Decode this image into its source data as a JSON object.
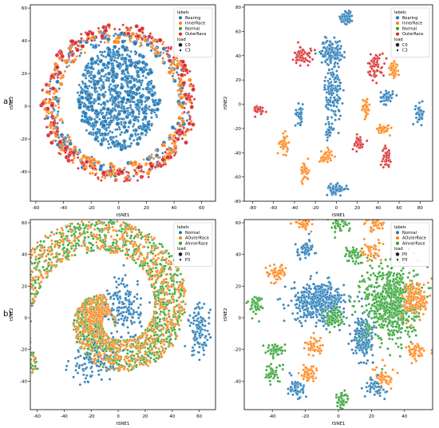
{
  "row_labels": [
    "a)",
    "b)"
  ],
  "colors": {
    "blue": "#1f77b4",
    "orange": "#ff7f0e",
    "green": "#2ca02c",
    "red": "#d62728"
  },
  "chart_data": [
    {
      "type": "scatter",
      "panel": "top-left",
      "xlabel": "tSNE1",
      "ylabel": "tSNE2",
      "xlim": [
        -64,
        70
      ],
      "ylim": [
        -58,
        62
      ],
      "xticks": [
        -60,
        -40,
        -20,
        0,
        20,
        40,
        60
      ],
      "yticks": [
        -40,
        -20,
        0,
        20,
        40,
        60
      ],
      "legend": {
        "placement": "top-right",
        "title": "labels",
        "entries": [
          {
            "label": "Bearing",
            "color": "#1f77b4"
          },
          {
            "label": "InnerRace",
            "color": "#ff7f0e"
          },
          {
            "label": "Normal",
            "color": "#2ca02c"
          },
          {
            "label": "OuterRace",
            "color": "#d62728"
          }
        ],
        "size_title": "load",
        "size_entries": [
          "C0",
          "C3"
        ]
      },
      "clusters": [
        {
          "label": "Normal",
          "shape": "disc",
          "cx": 0,
          "cy": 5,
          "r": 30,
          "n": 700
        },
        {
          "label": "Bearing",
          "shape": "ring",
          "cx": 0,
          "cy": 2,
          "r": 46,
          "w": 9,
          "n": 220
        },
        {
          "label": "InnerRace",
          "shape": "ring",
          "cx": 0,
          "cy": 2,
          "r": 47,
          "w": 10,
          "n": 300
        },
        {
          "label": "OuterRace",
          "shape": "ring",
          "cx": 0,
          "cy": 2,
          "r": 49,
          "w": 8,
          "n": 260
        }
      ]
    },
    {
      "type": "scatter",
      "panel": "top-right",
      "xlabel": "tSNE1",
      "ylabel": "tSNE2",
      "xlim": [
        -88,
        92
      ],
      "ylim": [
        -80,
        82
      ],
      "xticks": [
        -80,
        -60,
        -40,
        -20,
        0,
        20,
        40,
        60,
        80
      ],
      "yticks": [
        -80,
        -60,
        -40,
        -20,
        0,
        20,
        40,
        60,
        80
      ],
      "legend": {
        "placement": "top-right",
        "title": "labels",
        "entries": [
          {
            "label": "Bearing",
            "color": "#1f77b4"
          },
          {
            "label": "InnerRace",
            "color": "#ff7f0e"
          },
          {
            "label": "Normal",
            "color": "#2ca02c"
          },
          {
            "label": "OuterRace",
            "color": "#d62728"
          }
        ],
        "size_title": "load",
        "size_entries": [
          "C0",
          "C3"
        ]
      },
      "clusters": [
        {
          "label": "Bearing",
          "shape": "blob",
          "cx": 10,
          "cy": 72,
          "sx": 3,
          "sy": 3,
          "n": 60
        },
        {
          "label": "Bearing",
          "shape": "blob",
          "cx": -35,
          "cy": -8,
          "sx": 2,
          "sy": 4,
          "n": 40
        },
        {
          "label": "Bearing",
          "shape": "blob",
          "cx": 48,
          "cy": 6,
          "sx": 3,
          "sy": 3,
          "n": 40
        },
        {
          "label": "Bearing",
          "shape": "blob",
          "cx": 80,
          "cy": -8,
          "sx": 2,
          "sy": 4,
          "n": 40
        },
        {
          "label": "Bearing",
          "shape": "blob",
          "cx": 0,
          "cy": -70,
          "sx": 5,
          "sy": 2,
          "n": 60
        },
        {
          "label": "InnerRace",
          "shape": "blob",
          "cx": 55,
          "cy": 28,
          "sx": 2,
          "sy": 3,
          "n": 40
        },
        {
          "label": "InnerRace",
          "shape": "blob",
          "cx": 28,
          "cy": -3,
          "sx": 2,
          "sy": 4,
          "n": 40
        },
        {
          "label": "InnerRace",
          "shape": "blob",
          "cx": 45,
          "cy": -20,
          "sx": 3,
          "sy": 2,
          "n": 40
        },
        {
          "label": "InnerRace",
          "shape": "blob",
          "cx": -50,
          "cy": -33,
          "sx": 2,
          "sy": 4,
          "n": 45
        },
        {
          "label": "InnerRace",
          "shape": "blob",
          "cx": -10,
          "cy": -43,
          "sx": 3,
          "sy": 3,
          "n": 45
        },
        {
          "label": "InnerRace",
          "shape": "blob",
          "cx": -30,
          "cy": -55,
          "sx": 2,
          "sy": 4,
          "n": 45
        },
        {
          "label": "Normal",
          "shape": "blob",
          "cx": -5,
          "cy": 43,
          "sx": 5,
          "sy": 5,
          "n": 150
        },
        {
          "label": "Normal",
          "shape": "blob",
          "cx": -3,
          "cy": 8,
          "sx": 4,
          "sy": 12,
          "n": 140
        },
        {
          "label": "Normal",
          "shape": "blob",
          "cx": -7,
          "cy": -22,
          "sx": 1.5,
          "sy": 3,
          "n": 30
        },
        {
          "label": "OuterRace",
          "shape": "blob",
          "cx": -32,
          "cy": 40,
          "sx": 4,
          "sy": 4,
          "n": 60
        },
        {
          "label": "OuterRace",
          "shape": "blob",
          "cx": 38,
          "cy": 32,
          "sx": 4,
          "sy": 5,
          "n": 60
        },
        {
          "label": "OuterRace",
          "shape": "blob",
          "cx": -75,
          "cy": -5,
          "sx": 4,
          "sy": 2,
          "n": 35
        },
        {
          "label": "OuterRace",
          "shape": "blob",
          "cx": 21,
          "cy": -32,
          "sx": 3,
          "sy": 3,
          "n": 40
        },
        {
          "label": "OuterRace",
          "shape": "blob",
          "cx": 48,
          "cy": -43,
          "sx": 2,
          "sy": 4,
          "n": 40
        }
      ]
    },
    {
      "type": "scatter",
      "panel": "bottom-left",
      "xlabel": "tSNE1",
      "ylabel": "tSNE2",
      "xlim": [
        -65,
        72
      ],
      "ylim": [
        -58,
        62
      ],
      "xticks": [
        -60,
        -40,
        -20,
        0,
        20,
        40,
        60
      ],
      "yticks": [
        -40,
        -20,
        0,
        20,
        40,
        60
      ],
      "legend": {
        "placement": "top-right",
        "title": "labels",
        "entries": [
          {
            "label": "Normal",
            "color": "#1f77b4"
          },
          {
            "label": "AOuterRace",
            "color": "#ff7f0e"
          },
          {
            "label": "AInnerRace",
            "color": "#2ca02c"
          }
        ],
        "size_title": "load",
        "size_entries": [
          "P0",
          "P3"
        ]
      },
      "clusters": [
        {
          "label": "AInnerRace",
          "shape": "spiral",
          "n": 1700
        },
        {
          "label": "AOuterRace",
          "shape": "spiral",
          "n": 1100
        },
        {
          "label": "Normal",
          "shape": "blob",
          "cx": 5,
          "cy": 6,
          "sx": 6,
          "sy": 10,
          "n": 160
        },
        {
          "label": "Normal",
          "shape": "blob",
          "cx": 60,
          "cy": -8,
          "sx": 4,
          "sy": 8,
          "n": 110
        },
        {
          "label": "Normal",
          "shape": "blob",
          "cx": -20,
          "cy": -30,
          "sx": 8,
          "sy": 6,
          "n": 80
        }
      ]
    },
    {
      "type": "scatter",
      "panel": "bottom-right",
      "xlabel": "tSNE1",
      "ylabel": "tSNE2",
      "xlim": [
        -57,
        57
      ],
      "ylim": [
        -58,
        62
      ],
      "xticks": [
        -40,
        -20,
        0,
        20,
        40
      ],
      "yticks": [
        -40,
        -20,
        0,
        20,
        40,
        60
      ],
      "legend": {
        "placement": "top-right",
        "title": "labels",
        "entries": [
          {
            "label": "Normal",
            "color": "#1f77b4"
          },
          {
            "label": "AOuterRace",
            "color": "#ff7f0e"
          },
          {
            "label": "AInnerRace",
            "color": "#2ca02c"
          }
        ],
        "size_title": "load",
        "size_entries": [
          "P0",
          "P3"
        ]
      },
      "clusters": [
        {
          "label": "Normal",
          "shape": "blob",
          "cx": -12,
          "cy": 10,
          "sx": 8,
          "sy": 6,
          "n": 450
        },
        {
          "label": "Normal",
          "shape": "blob",
          "cx": 15,
          "cy": -12,
          "sx": 3,
          "sy": 6,
          "n": 200
        },
        {
          "label": "Normal",
          "shape": "blob",
          "cx": -20,
          "cy": 43,
          "sx": 3,
          "sy": 3,
          "n": 60
        },
        {
          "label": "AInnerRace",
          "shape": "blob",
          "cx": 32,
          "cy": 10,
          "sx": 8,
          "sy": 12,
          "n": 700
        },
        {
          "label": "AInnerRace",
          "shape": "blob",
          "cx": -3,
          "cy": 0,
          "sx": 3,
          "sy": 3,
          "n": 80
        },
        {
          "label": "AInnerRace",
          "shape": "blob",
          "cx": 0,
          "cy": 60,
          "sx": 3,
          "sy": 3,
          "n": 50
        },
        {
          "label": "AInnerRace",
          "shape": "blob",
          "cx": 9,
          "cy": 40,
          "sx": 3,
          "sy": 3,
          "n": 50
        },
        {
          "label": "AInnerRace",
          "shape": "blob",
          "cx": -50,
          "cy": 8,
          "sx": 2,
          "sy": 3,
          "n": 45
        },
        {
          "label": "AInnerRace",
          "shape": "blob",
          "cx": -38,
          "cy": -20,
          "sx": 3,
          "sy": 2,
          "n": 45
        },
        {
          "label": "AInnerRace",
          "shape": "blob",
          "cx": -40,
          "cy": -35,
          "sx": 3,
          "sy": 3,
          "n": 45
        },
        {
          "label": "AInnerRace",
          "shape": "blob",
          "cx": 2,
          "cy": -52,
          "sx": 2,
          "sy": 3,
          "n": 45
        },
        {
          "label": "AOuterRace",
          "shape": "blob",
          "cx": -20,
          "cy": 60,
          "sx": 3,
          "sy": 3,
          "n": 50
        },
        {
          "label": "AOuterRace",
          "shape": "blob",
          "cx": 22,
          "cy": 60,
          "sx": 3,
          "sy": 3,
          "n": 50
        },
        {
          "label": "AOuterRace",
          "shape": "blob",
          "cx": -38,
          "cy": 28,
          "sx": 3,
          "sy": 3,
          "n": 55
        },
        {
          "label": "AOuterRace",
          "shape": "blob",
          "cx": 20,
          "cy": 42,
          "sx": 3,
          "sy": 3,
          "n": 45
        },
        {
          "label": "AOuterRace",
          "shape": "blob",
          "cx": 47,
          "cy": 12,
          "sx": 4,
          "sy": 6,
          "n": 140
        },
        {
          "label": "AOuterRace",
          "shape": "blob",
          "cx": -18,
          "cy": -35,
          "sx": 3,
          "sy": 3,
          "n": 50
        },
        {
          "label": "AOuterRace",
          "shape": "blob",
          "cx": -15,
          "cy": -18,
          "sx": 3,
          "sy": 3,
          "n": 45
        },
        {
          "label": "AOuterRace",
          "shape": "blob",
          "cx": 28,
          "cy": -38,
          "sx": 3,
          "sy": 3,
          "n": 50
        },
        {
          "label": "AOuterRace",
          "shape": "blob",
          "cx": 47,
          "cy": -22,
          "sx": 3,
          "sy": 3,
          "n": 50
        },
        {
          "label": "Normal",
          "shape": "blob",
          "cx": 22,
          "cy": -44,
          "sx": 3,
          "sy": 3,
          "n": 50
        },
        {
          "label": "Normal",
          "shape": "blob",
          "cx": -26,
          "cy": -45,
          "sx": 3,
          "sy": 3,
          "n": 50
        }
      ]
    }
  ]
}
